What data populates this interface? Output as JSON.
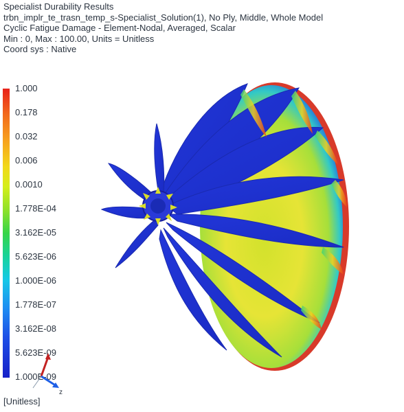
{
  "header": {
    "line1": "Specialist Durability Results",
    "line2": "trbn_implr_te_trasn_temp_s-Specialist_Solution(1), No Ply, Middle, Whole Model",
    "line3": "Cyclic Fatigue Damage - Element-Nodal, Averaged, Scalar",
    "line4": "Min : 0, Max : 100.00, Units = Unitless",
    "line5": "Coord sys : Native"
  },
  "legend": {
    "labels": [
      "1.000",
      "0.178",
      "0.032",
      "0.006",
      "0.0010",
      "1.778E-04",
      "3.162E-05",
      "5.623E-06",
      "1.000E-06",
      "1.778E-07",
      "3.162E-08",
      "5.623E-09",
      "1.000E-09"
    ],
    "colors_top_to_bottom": [
      "#e8221a",
      "#f7a21e",
      "#f2d81a",
      "#8fe12a",
      "#18d39a",
      "#16c9e6",
      "#1e8df2",
      "#1620c8"
    ]
  },
  "units_label": "[Unitless]",
  "triad": {
    "axis_label": "z"
  },
  "model": {
    "name": "turbine-impeller",
    "base_color": "#1f3fe0",
    "hub_color": "#d9dd2a",
    "rim_color": "#d8362a"
  }
}
